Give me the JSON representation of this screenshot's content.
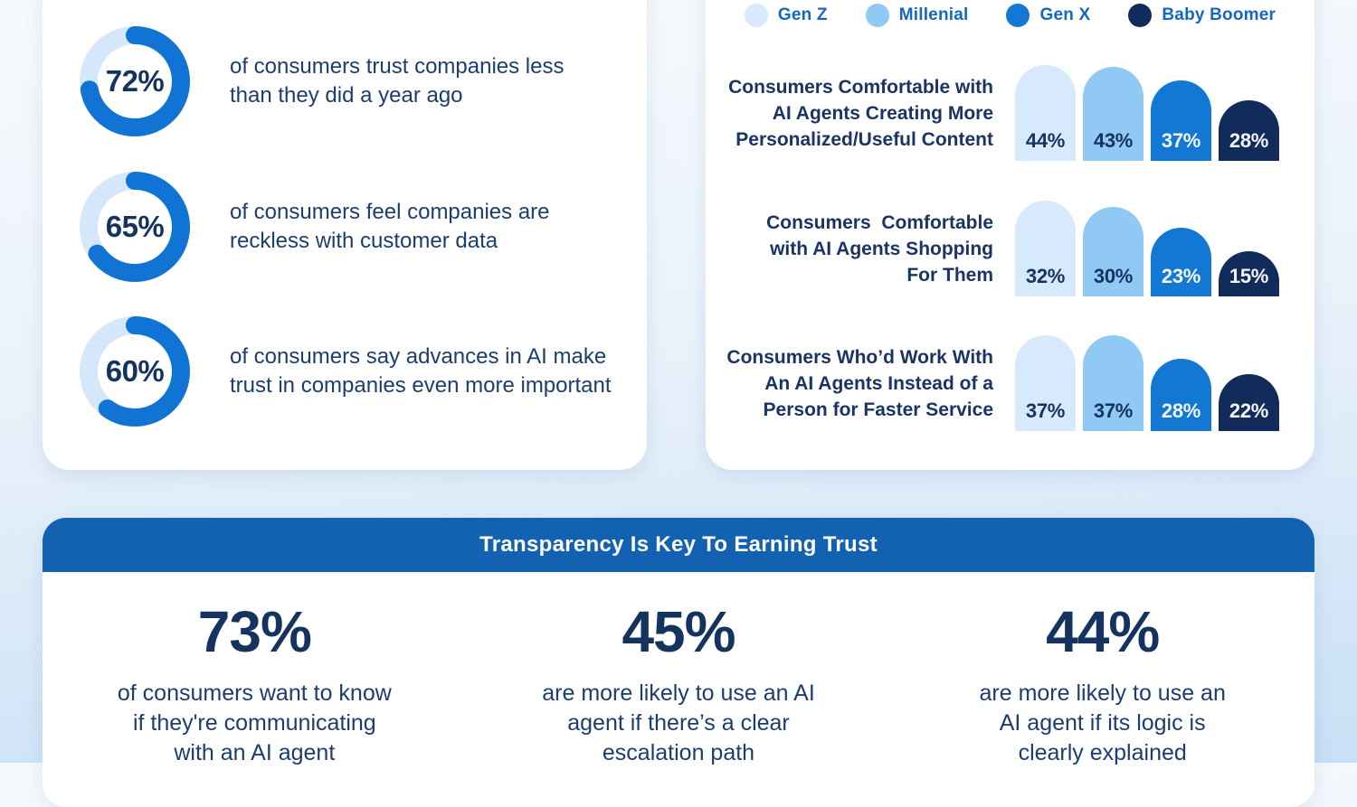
{
  "colors": {
    "background_top": "#F6FAFD",
    "background_bottom": "#C8E0F6",
    "card_white": "#FFFFFF",
    "donut_progress": "#1174D4",
    "donut_track": "#D5E8FB",
    "navy_heading": "#15335F",
    "body_text": "#1C3E6E",
    "legend_label_blue": "#1566C5",
    "banner_header_blue": "#1362B2"
  },
  "stats_card": {
    "items": [
      {
        "label": "72%",
        "pct": 72,
        "text": [
          "of consumers trust companies less",
          "than they did a year ago"
        ]
      },
      {
        "label": "65%",
        "pct": 65,
        "text": [
          "of consumers feel companies are",
          "reckless with customer data"
        ]
      },
      {
        "label": "60%",
        "pct": 60,
        "text": [
          "of consumers say advances in AI make",
          "trust in companies even more important"
        ]
      }
    ]
  },
  "bar_card": {
    "legend": [
      {
        "label": "Gen Z",
        "color": "#D7E9FC",
        "value_color": "#15335F"
      },
      {
        "label": "Millenial",
        "color": "#8FC9F4",
        "value_color": "#15335F"
      },
      {
        "label": "Gen X",
        "color": "#1377D4",
        "value_color": "#F2F8FD"
      },
      {
        "label": "Baby Boomer",
        "color": "#112C5A",
        "value_color": "#F2F8FD"
      }
    ],
    "rows": [
      {
        "label": [
          "Consumers Comfortable with",
          "AI Agents Creating More",
          "Personalized/Useful Content"
        ],
        "bars": [
          {
            "pct": 44,
            "label": "44%"
          },
          {
            "pct": 43,
            "label": "43%"
          },
          {
            "pct": 37,
            "label": "37%"
          },
          {
            "pct": 28,
            "label": "28%"
          }
        ]
      },
      {
        "label": [
          "Consumers  Comfortable",
          "with AI Agents Shopping",
          "For Them"
        ],
        "bars": [
          {
            "pct": 32,
            "label": "32%"
          },
          {
            "pct": 30,
            "label": "30%"
          },
          {
            "pct": 23,
            "label": "23%"
          },
          {
            "pct": 15,
            "label": "15%"
          }
        ]
      },
      {
        "label": [
          "Consumers Who’d Work With",
          "An AI Agents Instead of a",
          "Person for Faster Service"
        ],
        "bars": [
          {
            "pct": 37,
            "label": "37%"
          },
          {
            "pct": 37,
            "label": "37%"
          },
          {
            "pct": 28,
            "label": "28%"
          },
          {
            "pct": 22,
            "label": "22%"
          }
        ]
      }
    ]
  },
  "banner_card": {
    "title": "Transparency Is Key To Earning Trust",
    "stats": [
      {
        "value": "73%",
        "text": [
          "of consumers want to know",
          "if they're communicating",
          "with an AI agent"
        ]
      },
      {
        "value": "45%",
        "text": [
          "are more likely to use an AI",
          "agent if there’s a clear",
          "escalation path"
        ]
      },
      {
        "value": "44%",
        "text": [
          "are more likely to use an",
          "AI agent if its logic is",
          "clearly explained"
        ]
      }
    ]
  },
  "chart_data": [
    {
      "type": "pie",
      "style": "donut",
      "title": "Consumer trust statistics",
      "items": [
        {
          "label": "72%",
          "value": 72,
          "text": "of consumers trust companies less than they did a year ago"
        },
        {
          "label": "65%",
          "value": 65,
          "text": "of consumers feel companies are reckless with customer data"
        },
        {
          "label": "60%",
          "value": 60,
          "text": "of consumers say advances in AI make trust in companies even more important"
        }
      ],
      "progress_color": "#1174D4",
      "track_color": "#D5E8FB"
    },
    {
      "type": "bar",
      "title": "Comfort with AI agents by generation",
      "categories": [
        "Consumers Comfortable with AI Agents Creating More Personalized/Useful Content",
        "Consumers Comfortable with AI Agents Shopping For Them",
        "Consumers Who’d Work With An AI Agents Instead of a Person for Faster Service"
      ],
      "series": [
        {
          "name": "Gen Z",
          "values": [
            44,
            32,
            37
          ],
          "color": "#D7E9FC"
        },
        {
          "name": "Millenial",
          "values": [
            43,
            30,
            37
          ],
          "color": "#8FC9F4"
        },
        {
          "name": "Gen X",
          "values": [
            37,
            23,
            28
          ],
          "color": "#1377D4"
        },
        {
          "name": "Baby Boomer",
          "values": [
            28,
            15,
            22
          ],
          "color": "#112C5A"
        }
      ],
      "value_format": "percent",
      "legend_position": "top",
      "grid": false,
      "bar_style": "rounded-dome, normalized per group"
    },
    {
      "type": "table",
      "title": "Transparency Is Key To Earning Trust",
      "categories": [
        "of consumers want to know if they're communicating with an AI agent",
        "are more likely to use an AI agent if there’s a clear escalation path",
        "are more likely to use an AI agent if its logic is clearly explained"
      ],
      "values": [
        73,
        45,
        44
      ]
    }
  ]
}
